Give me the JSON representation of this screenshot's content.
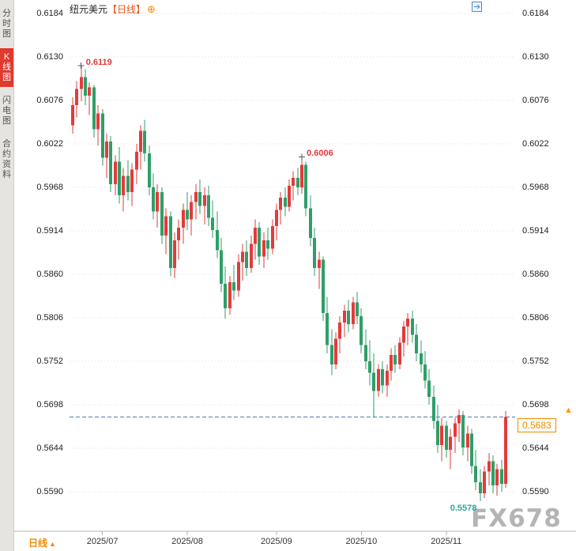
{
  "app": {
    "sidebar": {
      "tabs": [
        {
          "label": "分时图",
          "active": false
        },
        {
          "label": "K线图",
          "active": true
        },
        {
          "label": "闪电图",
          "active": false
        },
        {
          "label": "合约资料",
          "active": false
        }
      ]
    },
    "header": {
      "symbol": "纽元美元",
      "period": "【日线】",
      "plus_icon": "⊕",
      "layout_icons": [
        "pane-grid-icon",
        "pane-vertical-split-icon",
        "pane-horizontal-split-icon",
        "pane-expand-icon"
      ]
    },
    "footer": {
      "period_label": "日线",
      "up_arrow": "▲"
    },
    "watermark": "FX678"
  },
  "chart_data": {
    "type": "candlestick",
    "title": "纽元美元 日线",
    "timeframe": "日线",
    "y_ticks": [
      0.6184,
      0.613,
      0.6076,
      0.6022,
      0.5968,
      0.5914,
      0.586,
      0.5806,
      0.5752,
      0.5698,
      0.5644,
      0.559
    ],
    "x_ticks": [
      {
        "label": "2025/07",
        "index": 7
      },
      {
        "label": "2025/08",
        "index": 27
      },
      {
        "label": "2025/09",
        "index": 48
      },
      {
        "label": "2025/10",
        "index": 68
      },
      {
        "label": "2025/11",
        "index": 88
      }
    ],
    "current_price": {
      "value": 0.5683,
      "label": "0.5683",
      "color": "#f08c00",
      "arrow_icon": "▲"
    },
    "markers": [
      {
        "label": "0.6119",
        "price": 0.6119,
        "index": 2,
        "type": "high",
        "color": "#e0393b"
      },
      {
        "label": "0.6006",
        "price": 0.6006,
        "index": 54,
        "type": "high",
        "color": "#e0393b"
      },
      {
        "label": "0.5578",
        "price": 0.5578,
        "index": 96,
        "type": "low",
        "color": "#2ba89e"
      }
    ],
    "colors": {
      "up": "#e23b3b",
      "down": "#2f9e68",
      "dashed_line": "#4a7dab",
      "grid": "#dedede"
    },
    "candles": [
      [
        0.6045,
        0.608,
        0.6035,
        0.607
      ],
      [
        0.607,
        0.61,
        0.6055,
        0.609
      ],
      [
        0.609,
        0.6119,
        0.6075,
        0.6105
      ],
      [
        0.6105,
        0.6115,
        0.607,
        0.6082
      ],
      [
        0.6082,
        0.6098,
        0.6058,
        0.6092
      ],
      [
        0.6092,
        0.6095,
        0.603,
        0.604
      ],
      [
        0.604,
        0.607,
        0.602,
        0.606
      ],
      [
        0.606,
        0.6065,
        0.5995,
        0.6005
      ],
      [
        0.6005,
        0.6035,
        0.598,
        0.6025
      ],
      [
        0.6025,
        0.6032,
        0.5962,
        0.5972
      ],
      [
        0.5972,
        0.6008,
        0.5958,
        0.6
      ],
      [
        0.6,
        0.6018,
        0.5948,
        0.5958
      ],
      [
        0.5958,
        0.5992,
        0.5938,
        0.5982
      ],
      [
        0.5982,
        0.6002,
        0.5952,
        0.5962
      ],
      [
        0.5962,
        0.5998,
        0.5945,
        0.599
      ],
      [
        0.599,
        0.6022,
        0.5972,
        0.6012
      ],
      [
        0.6012,
        0.6045,
        0.599,
        0.6038
      ],
      [
        0.6038,
        0.6052,
        0.6,
        0.601
      ],
      [
        0.601,
        0.602,
        0.5958,
        0.5968
      ],
      [
        0.5968,
        0.5985,
        0.5928,
        0.5938
      ],
      [
        0.5938,
        0.5972,
        0.5918,
        0.5962
      ],
      [
        0.5962,
        0.5968,
        0.5898,
        0.5908
      ],
      [
        0.5908,
        0.5942,
        0.5885,
        0.5932
      ],
      [
        0.5932,
        0.5938,
        0.5858,
        0.5868
      ],
      [
        0.5868,
        0.5912,
        0.5855,
        0.5902
      ],
      [
        0.5902,
        0.5928,
        0.5878,
        0.5918
      ],
      [
        0.5918,
        0.5948,
        0.5898,
        0.594
      ],
      [
        0.594,
        0.5962,
        0.5915,
        0.5928
      ],
      [
        0.5928,
        0.5958,
        0.5908,
        0.595
      ],
      [
        0.595,
        0.5972,
        0.5928,
        0.5962
      ],
      [
        0.5962,
        0.5978,
        0.5935,
        0.5945
      ],
      [
        0.5945,
        0.5968,
        0.5922,
        0.5958
      ],
      [
        0.5958,
        0.597,
        0.592,
        0.593
      ],
      [
        0.593,
        0.5952,
        0.5905,
        0.5915
      ],
      [
        0.5915,
        0.5938,
        0.588,
        0.589
      ],
      [
        0.589,
        0.5905,
        0.5838,
        0.5848
      ],
      [
        0.5848,
        0.587,
        0.5805,
        0.5818
      ],
      [
        0.5818,
        0.5858,
        0.581,
        0.585
      ],
      [
        0.585,
        0.5872,
        0.5828,
        0.584
      ],
      [
        0.584,
        0.5885,
        0.5832,
        0.5875
      ],
      [
        0.5875,
        0.5898,
        0.5852,
        0.5888
      ],
      [
        0.5888,
        0.5902,
        0.5858,
        0.5868
      ],
      [
        0.5868,
        0.5908,
        0.5862,
        0.5898
      ],
      [
        0.5898,
        0.5928,
        0.5878,
        0.5918
      ],
      [
        0.5918,
        0.5925,
        0.5872,
        0.5882
      ],
      [
        0.5882,
        0.5912,
        0.5868,
        0.5902
      ],
      [
        0.5902,
        0.5918,
        0.5878,
        0.5892
      ],
      [
        0.5892,
        0.5928,
        0.5885,
        0.592
      ],
      [
        0.592,
        0.5948,
        0.5902,
        0.594
      ],
      [
        0.594,
        0.5962,
        0.5922,
        0.5955
      ],
      [
        0.5955,
        0.5968,
        0.5932,
        0.5944
      ],
      [
        0.5944,
        0.5978,
        0.5938,
        0.597
      ],
      [
        0.597,
        0.5988,
        0.5952,
        0.598
      ],
      [
        0.598,
        0.5992,
        0.5958,
        0.5968
      ],
      [
        0.5968,
        0.6006,
        0.596,
        0.5996
      ],
      [
        0.5996,
        0.6,
        0.5932,
        0.5942
      ],
      [
        0.5942,
        0.5958,
        0.5895,
        0.5905
      ],
      [
        0.5905,
        0.5918,
        0.5858,
        0.5868
      ],
      [
        0.5868,
        0.5888,
        0.5842,
        0.5878
      ],
      [
        0.5878,
        0.5882,
        0.5802,
        0.5812
      ],
      [
        0.5812,
        0.5832,
        0.5762,
        0.5772
      ],
      [
        0.5772,
        0.5792,
        0.5735,
        0.5748
      ],
      [
        0.5748,
        0.5788,
        0.5742,
        0.578
      ],
      [
        0.578,
        0.5808,
        0.5762,
        0.58
      ],
      [
        0.58,
        0.5822,
        0.5782,
        0.5815
      ],
      [
        0.5815,
        0.5828,
        0.5788,
        0.5798
      ],
      [
        0.5798,
        0.5832,
        0.5792,
        0.5825
      ],
      [
        0.5825,
        0.5838,
        0.5798,
        0.5808
      ],
      [
        0.5808,
        0.5818,
        0.5762,
        0.5772
      ],
      [
        0.5772,
        0.5792,
        0.5742,
        0.5752
      ],
      [
        0.5752,
        0.5778,
        0.5722,
        0.5738
      ],
      [
        0.5738,
        0.5762,
        0.5682,
        0.5715
      ],
      [
        0.5715,
        0.5748,
        0.5708,
        0.5742
      ],
      [
        0.5742,
        0.5752,
        0.5712,
        0.5722
      ],
      [
        0.5722,
        0.5748,
        0.5708,
        0.574
      ],
      [
        0.574,
        0.5768,
        0.5728,
        0.576
      ],
      [
        0.576,
        0.5772,
        0.5738,
        0.5748
      ],
      [
        0.5748,
        0.5782,
        0.5742,
        0.5775
      ],
      [
        0.5775,
        0.5802,
        0.5758,
        0.5795
      ],
      [
        0.5795,
        0.5812,
        0.5772,
        0.5805
      ],
      [
        0.5805,
        0.5815,
        0.5775,
        0.5785
      ],
      [
        0.5785,
        0.5798,
        0.5752,
        0.5762
      ],
      [
        0.5762,
        0.5778,
        0.5738,
        0.5748
      ],
      [
        0.5748,
        0.5765,
        0.5718,
        0.5728
      ],
      [
        0.5728,
        0.5742,
        0.5698,
        0.5708
      ],
      [
        0.5708,
        0.5722,
        0.5668,
        0.5678
      ],
      [
        0.5678,
        0.5698,
        0.5638,
        0.5648
      ],
      [
        0.5648,
        0.5682,
        0.5628,
        0.5672
      ],
      [
        0.5672,
        0.5678,
        0.5632,
        0.5642
      ],
      [
        0.5642,
        0.5668,
        0.5618,
        0.5658
      ],
      [
        0.5658,
        0.5682,
        0.5638,
        0.5675
      ],
      [
        0.5675,
        0.5692,
        0.5652,
        0.5685
      ],
      [
        0.5685,
        0.569,
        0.5635,
        0.5645
      ],
      [
        0.5645,
        0.5672,
        0.5628,
        0.5662
      ],
      [
        0.5662,
        0.5668,
        0.5612,
        0.5622
      ],
      [
        0.5622,
        0.5642,
        0.5592,
        0.5602
      ],
      [
        0.5602,
        0.5618,
        0.5578,
        0.5588
      ],
      [
        0.5588,
        0.5622,
        0.5582,
        0.5615
      ],
      [
        0.5615,
        0.5638,
        0.5598,
        0.5628
      ],
      [
        0.5628,
        0.5635,
        0.5588,
        0.5598
      ],
      [
        0.5598,
        0.5625,
        0.5585,
        0.5618
      ],
      [
        0.5618,
        0.563,
        0.559,
        0.56
      ],
      [
        0.56,
        0.569,
        0.5595,
        0.5683
      ]
    ]
  }
}
